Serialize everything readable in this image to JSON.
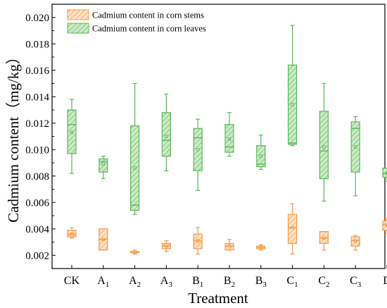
{
  "chart_data": {
    "type": "box",
    "title": "",
    "xlabel": "Treatment",
    "ylabel": "Cadmium content（mg/kg）",
    "ylim": [
      0.001,
      0.021
    ],
    "yticks": [
      "0.002",
      "0.004",
      "0.006",
      "0.008",
      "0.010",
      "0.012",
      "0.014",
      "0.016",
      "0.018",
      "0.020"
    ],
    "ytick_values": [
      0.002,
      0.004,
      0.006,
      0.008,
      0.01,
      0.012,
      0.014,
      0.016,
      0.018,
      0.02
    ],
    "grid": false,
    "legend_position": "top-left",
    "categories": [
      {
        "base": "CK",
        "sub": ""
      },
      {
        "base": "A",
        "sub": "1"
      },
      {
        "base": "A",
        "sub": "2"
      },
      {
        "base": "A",
        "sub": "3"
      },
      {
        "base": "B",
        "sub": "1"
      },
      {
        "base": "B",
        "sub": "2"
      },
      {
        "base": "B",
        "sub": "3"
      },
      {
        "base": "C",
        "sub": "1"
      },
      {
        "base": "C",
        "sub": "2"
      },
      {
        "base": "C",
        "sub": "3"
      },
      {
        "base": "D",
        "sub": ""
      }
    ],
    "series": [
      {
        "name": "Cadmium content in corn stems",
        "color": "#f39c4b",
        "fill": "#fde3c6",
        "boxes": [
          {
            "min": 0.0033,
            "q1": 0.0034,
            "median": 0.0036,
            "q3": 0.0039,
            "max": 0.0041,
            "mean": 0.0036
          },
          {
            "min": 0.0024,
            "q1": 0.0024,
            "median": 0.0032,
            "q3": 0.004,
            "max": 0.004,
            "mean": 0.0032
          },
          {
            "min": 0.0021,
            "q1": 0.0022,
            "median": 0.0022,
            "q3": 0.0023,
            "max": 0.0024,
            "mean": 0.0022
          },
          {
            "min": 0.0023,
            "q1": 0.0025,
            "median": 0.0027,
            "q3": 0.0029,
            "max": 0.0031,
            "mean": 0.0027
          },
          {
            "min": 0.0021,
            "q1": 0.0025,
            "median": 0.0031,
            "q3": 0.0036,
            "max": 0.0041,
            "mean": 0.0031
          },
          {
            "min": 0.0024,
            "q1": 0.0024,
            "median": 0.0027,
            "q3": 0.0029,
            "max": 0.0032,
            "mean": 0.0027
          },
          {
            "min": 0.0024,
            "q1": 0.0025,
            "median": 0.0026,
            "q3": 0.0027,
            "max": 0.0028,
            "mean": 0.0026
          },
          {
            "min": 0.0021,
            "q1": 0.0029,
            "median": 0.0041,
            "q3": 0.0051,
            "max": 0.0059,
            "mean": 0.0041
          },
          {
            "min": 0.0024,
            "q1": 0.0029,
            "median": 0.0033,
            "q3": 0.0038,
            "max": 0.0038,
            "mean": 0.0033
          },
          {
            "min": 0.0024,
            "q1": 0.0027,
            "median": 0.0031,
            "q3": 0.0034,
            "max": 0.0035,
            "mean": 0.0031
          },
          {
            "min": 0.0036,
            "q1": 0.0039,
            "median": 0.0043,
            "q3": 0.0046,
            "max": 0.0048,
            "mean": 0.0043
          }
        ]
      },
      {
        "name": "Cadmium content in corn leaves",
        "color": "#5cb85c",
        "fill": "#cdeac7",
        "boxes": [
          {
            "min": 0.0082,
            "q1": 0.0097,
            "median": 0.0119,
            "q3": 0.013,
            "max": 0.0138,
            "mean": 0.0113
          },
          {
            "min": 0.0078,
            "q1": 0.0083,
            "median": 0.0091,
            "q3": 0.0093,
            "max": 0.0095,
            "mean": 0.0089
          },
          {
            "min": 0.0051,
            "q1": 0.0054,
            "median": 0.0058,
            "q3": 0.0118,
            "max": 0.015,
            "mean": 0.0086
          },
          {
            "min": 0.0084,
            "q1": 0.0095,
            "median": 0.0107,
            "q3": 0.0128,
            "max": 0.0142,
            "mean": 0.011
          },
          {
            "min": 0.0069,
            "q1": 0.0084,
            "median": 0.0109,
            "q3": 0.0116,
            "max": 0.0123,
            "mean": 0.01
          },
          {
            "min": 0.0095,
            "q1": 0.0098,
            "median": 0.0102,
            "q3": 0.0119,
            "max": 0.0128,
            "mean": 0.0108
          },
          {
            "min": 0.0085,
            "q1": 0.0087,
            "median": 0.0089,
            "q3": 0.0103,
            "max": 0.0111,
            "mean": 0.0095
          },
          {
            "min": 0.0103,
            "q1": 0.0104,
            "median": 0.0105,
            "q3": 0.0164,
            "max": 0.0194,
            "mean": 0.0134
          },
          {
            "min": 0.0061,
            "q1": 0.0078,
            "median": 0.0099,
            "q3": 0.0129,
            "max": 0.015,
            "mean": 0.0102
          },
          {
            "min": 0.0065,
            "q1": 0.0083,
            "median": 0.0116,
            "q3": 0.0121,
            "max": 0.0125,
            "mean": 0.0102
          },
          {
            "min": 0.0076,
            "q1": 0.0079,
            "median": 0.0082,
            "q3": 0.0086,
            "max": 0.0086,
            "mean": 0.0082
          }
        ]
      }
    ]
  }
}
